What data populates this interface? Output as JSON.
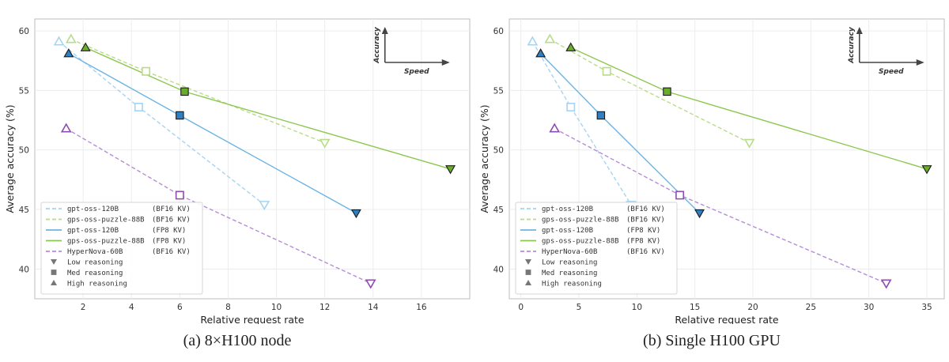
{
  "chart_data": [
    {
      "type": "line",
      "caption": "(a) 8×H100 node",
      "xlabel": "Relative request rate",
      "ylabel": "Average accuracy (%)",
      "xlim": [
        0,
        18
      ],
      "ylim": [
        37.5,
        61
      ],
      "xticks": [
        2,
        4,
        6,
        8,
        10,
        12,
        14,
        16
      ],
      "yticks": [
        40,
        45,
        50,
        55,
        60
      ],
      "grid": true,
      "legend_position": "lower-left",
      "inset_labels": {
        "y": "Accuracy",
        "x": "Speed"
      },
      "series": [
        {
          "name": "gpt-oss-120B",
          "tag": "(BF16 KV)",
          "color": "#a8d4f0",
          "style": "dashed",
          "filled": false,
          "points": [
            {
              "x": 1.0,
              "y": 59.1,
              "r": "high"
            },
            {
              "x": 4.3,
              "y": 53.6,
              "r": "med"
            },
            {
              "x": 9.5,
              "y": 45.4,
              "r": "low"
            }
          ]
        },
        {
          "name": "gps-oss-puzzle-88B",
          "tag": "(BF16 KV)",
          "color": "#b9dc8c",
          "style": "dashed",
          "filled": false,
          "points": [
            {
              "x": 1.5,
              "y": 59.3,
              "r": "high"
            },
            {
              "x": 4.6,
              "y": 56.6,
              "r": "med"
            },
            {
              "x": 12.0,
              "y": 50.6,
              "r": "low"
            }
          ]
        },
        {
          "name": "gpt-oss-120B",
          "tag": "(FP8 KV)",
          "color": "#6cb4e4",
          "style": "solid",
          "filled": true,
          "fill": "#2f7fc1",
          "points": [
            {
              "x": 1.4,
              "y": 58.1,
              "r": "high"
            },
            {
              "x": 6.0,
              "y": 52.9,
              "r": "med"
            },
            {
              "x": 13.3,
              "y": 44.7,
              "r": "low"
            }
          ]
        },
        {
          "name": "gps-oss-puzzle-88B",
          "tag": "(FP8 KV)",
          "color": "#8cc850",
          "style": "solid",
          "filled": true,
          "fill": "#6aad2c",
          "points": [
            {
              "x": 2.1,
              "y": 58.6,
              "r": "high"
            },
            {
              "x": 6.2,
              "y": 54.9,
              "r": "med"
            },
            {
              "x": 17.2,
              "y": 48.4,
              "r": "low"
            }
          ]
        },
        {
          "name": "HyperNova-60B",
          "tag": "(BF16 KV)",
          "color": "#b58cd8",
          "style": "dashed",
          "filled": false,
          "edge": "#8e4cb0",
          "points": [
            {
              "x": 1.3,
              "y": 51.8,
              "r": "high"
            },
            {
              "x": 6.0,
              "y": 46.2,
              "r": "med"
            },
            {
              "x": 13.9,
              "y": 38.8,
              "r": "low"
            }
          ]
        }
      ],
      "markers": [
        {
          "label": "Low reasoning",
          "shape": "down"
        },
        {
          "label": "Med reasoning",
          "shape": "square"
        },
        {
          "label": "High reasoning",
          "shape": "up"
        }
      ]
    },
    {
      "type": "line",
      "caption": "(b) Single H100 GPU",
      "xlabel": "Relative request rate",
      "ylabel": "Average accuracy (%)",
      "xlim": [
        -1,
        36.5
      ],
      "ylim": [
        37.5,
        61
      ],
      "xticks": [
        0,
        5,
        10,
        15,
        20,
        25,
        30,
        35
      ],
      "yticks": [
        40,
        45,
        50,
        55,
        60
      ],
      "grid": true,
      "legend_position": "lower-left",
      "inset_labels": {
        "y": "Accuracy",
        "x": "Speed"
      },
      "series": [
        {
          "name": "gpt-oss-120B",
          "tag": "(BF16 KV)",
          "color": "#a8d4f0",
          "style": "dashed",
          "filled": false,
          "points": [
            {
              "x": 1.0,
              "y": 59.1,
              "r": "high"
            },
            {
              "x": 4.3,
              "y": 53.6,
              "r": "med"
            },
            {
              "x": 9.5,
              "y": 45.4,
              "r": "low"
            }
          ]
        },
        {
          "name": "gps-oss-puzzle-88B",
          "tag": "(BF16 KV)",
          "color": "#b9dc8c",
          "style": "dashed",
          "filled": false,
          "points": [
            {
              "x": 2.5,
              "y": 59.3,
              "r": "high"
            },
            {
              "x": 7.4,
              "y": 56.6,
              "r": "med"
            },
            {
              "x": 19.7,
              "y": 50.6,
              "r": "low"
            }
          ]
        },
        {
          "name": "gpt-oss-120B",
          "tag": "(FP8 KV)",
          "color": "#6cb4e4",
          "style": "solid",
          "filled": true,
          "fill": "#2f7fc1",
          "points": [
            {
              "x": 1.7,
              "y": 58.1,
              "r": "high"
            },
            {
              "x": 6.9,
              "y": 52.9,
              "r": "med"
            },
            {
              "x": 15.4,
              "y": 44.7,
              "r": "low"
            }
          ]
        },
        {
          "name": "gps-oss-puzzle-88B",
          "tag": "(FP8 KV)",
          "color": "#8cc850",
          "style": "solid",
          "filled": true,
          "fill": "#6aad2c",
          "points": [
            {
              "x": 4.3,
              "y": 58.6,
              "r": "high"
            },
            {
              "x": 12.6,
              "y": 54.9,
              "r": "med"
            },
            {
              "x": 35.0,
              "y": 48.4,
              "r": "low"
            }
          ]
        },
        {
          "name": "HyperNova-60B",
          "tag": "(BF16 KV)",
          "color": "#b58cd8",
          "style": "dashed",
          "filled": false,
          "edge": "#8e4cb0",
          "points": [
            {
              "x": 2.9,
              "y": 51.8,
              "r": "high"
            },
            {
              "x": 13.7,
              "y": 46.2,
              "r": "med"
            },
            {
              "x": 31.5,
              "y": 38.8,
              "r": "low"
            }
          ]
        }
      ],
      "markers": [
        {
          "label": "Low reasoning",
          "shape": "down"
        },
        {
          "label": "Med reasoning",
          "shape": "square"
        },
        {
          "label": "High reasoning",
          "shape": "up"
        }
      ]
    }
  ]
}
